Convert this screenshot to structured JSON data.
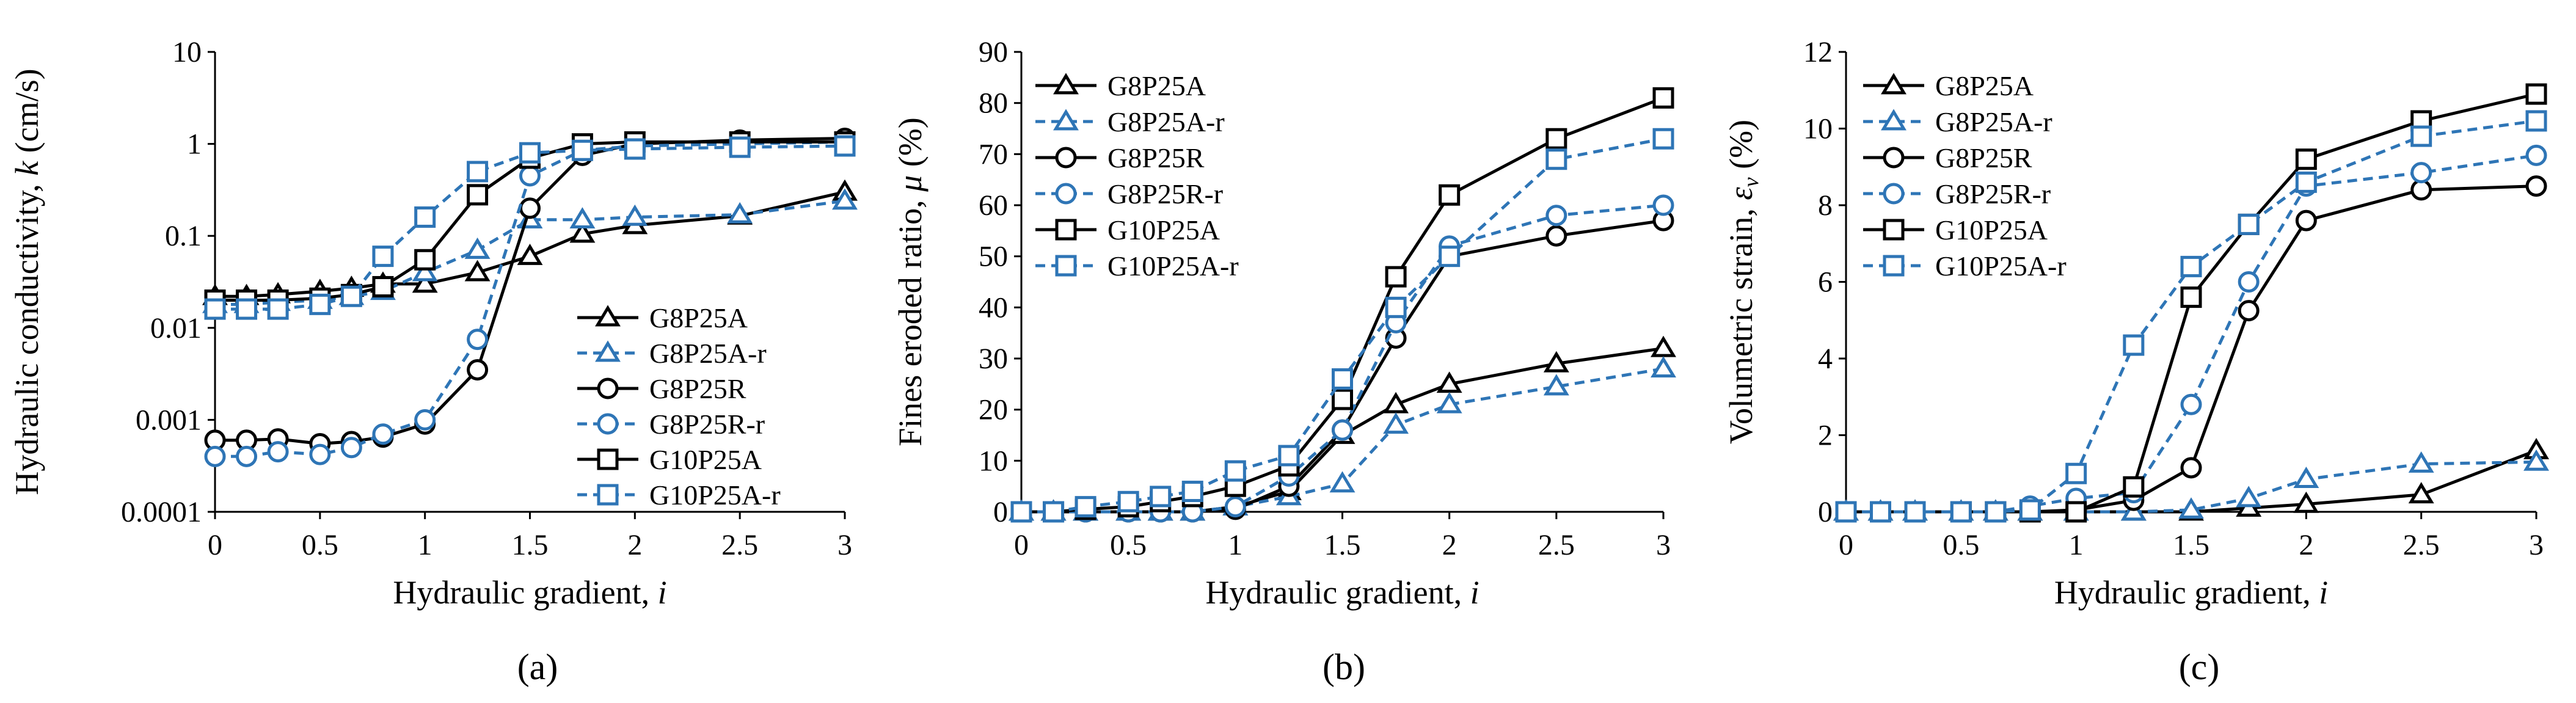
{
  "figure": {
    "captions": [
      "(a)",
      "(b)",
      "(c)"
    ]
  },
  "colors": {
    "black": "#000000",
    "blue": "#2E75B6"
  },
  "chart_data": [
    {
      "type": "line",
      "panel": "(a)",
      "title": "",
      "xlabel_main": "Hydraulic gradient, ",
      "xlabel_italic": "i",
      "ylabel_main": "Hydraulic conductivity, ",
      "ylabel_italic": "k",
      "ylabel_unit": " (cm/s)",
      "yscale": "log",
      "xlim": [
        0,
        3
      ],
      "ylim": [
        0.0001,
        10
      ],
      "xticks": [
        0,
        0.5,
        1,
        1.5,
        2,
        2.5,
        3
      ],
      "xtick_labels": [
        "0",
        "0.5",
        "1",
        "1.5",
        "2",
        "2.5",
        "3"
      ],
      "yticks": [
        0.0001,
        0.001,
        0.01,
        0.1,
        1,
        10
      ],
      "ytick_labels": [
        "0.0001",
        "0.001",
        "0.01",
        "0.1",
        "1",
        "10"
      ],
      "legend_position": "center-right",
      "series": [
        {
          "name": "G8P25A",
          "color": "black",
          "dash": false,
          "marker": "triangle",
          "x": [
            0,
            0.15,
            0.3,
            0.5,
            0.65,
            0.8,
            1,
            1.25,
            1.5,
            1.75,
            2,
            2.5,
            3
          ],
          "y": [
            0.022,
            0.022,
            0.023,
            0.025,
            0.027,
            0.03,
            0.03,
            0.04,
            0.06,
            0.105,
            0.13,
            0.165,
            0.3
          ]
        },
        {
          "name": "G8P25A-r",
          "color": "blue",
          "dash": true,
          "marker": "triangle",
          "x": [
            0,
            0.15,
            0.3,
            0.5,
            0.65,
            0.8,
            1,
            1.25,
            1.5,
            1.75,
            2,
            2.5,
            3
          ],
          "y": [
            0.018,
            0.018,
            0.019,
            0.02,
            0.022,
            0.025,
            0.04,
            0.07,
            0.15,
            0.15,
            0.16,
            0.17,
            0.24
          ]
        },
        {
          "name": "G8P25R",
          "color": "black",
          "dash": false,
          "marker": "circle",
          "x": [
            0,
            0.15,
            0.3,
            0.5,
            0.65,
            0.8,
            1,
            1.25,
            1.5,
            1.75,
            2,
            2.5,
            3
          ],
          "y": [
            0.0006,
            0.0006,
            0.00062,
            0.00055,
            0.00058,
            0.00065,
            0.0009,
            0.0035,
            0.2,
            0.75,
            1.0,
            1.1,
            1.15
          ]
        },
        {
          "name": "G8P25R-r",
          "color": "blue",
          "dash": true,
          "marker": "circle",
          "x": [
            0,
            0.15,
            0.3,
            0.5,
            0.65,
            0.8,
            1,
            1.25,
            1.5,
            1.75,
            2,
            2.5,
            3
          ],
          "y": [
            0.0004,
            0.0004,
            0.00045,
            0.00042,
            0.0005,
            0.0007,
            0.001,
            0.0075,
            0.45,
            0.85,
            0.95,
            1.0,
            1.05
          ]
        },
        {
          "name": "G10P25A",
          "color": "black",
          "dash": false,
          "marker": "square",
          "x": [
            0,
            0.15,
            0.3,
            0.5,
            0.65,
            0.8,
            1,
            1.25,
            1.5,
            1.75,
            2,
            2.5,
            3
          ],
          "y": [
            0.02,
            0.02,
            0.02,
            0.021,
            0.023,
            0.028,
            0.055,
            0.28,
            0.7,
            1.0,
            1.05,
            1.05,
            1.05
          ]
        },
        {
          "name": "G10P25A-r",
          "color": "blue",
          "dash": true,
          "marker": "square",
          "x": [
            0,
            0.15,
            0.3,
            0.5,
            0.65,
            0.8,
            1,
            1.25,
            1.5,
            1.75,
            2,
            2.5,
            3
          ],
          "y": [
            0.016,
            0.016,
            0.016,
            0.018,
            0.022,
            0.06,
            0.16,
            0.5,
            0.8,
            0.85,
            0.88,
            0.92,
            0.95
          ]
        }
      ]
    },
    {
      "type": "line",
      "panel": "(b)",
      "title": "",
      "xlabel_main": "Hydraulic gradient, ",
      "xlabel_italic": "i",
      "ylabel_main": "Fines eroded ratio, ",
      "ylabel_italic": "μ",
      "ylabel_unit": " (%)",
      "yscale": "linear",
      "xlim": [
        0,
        3
      ],
      "ylim": [
        0,
        90
      ],
      "xticks": [
        0,
        0.5,
        1,
        1.5,
        2,
        2.5,
        3
      ],
      "xtick_labels": [
        "0",
        "0.5",
        "1",
        "1.5",
        "2",
        "2.5",
        "3"
      ],
      "yticks": [
        0,
        10,
        20,
        30,
        40,
        50,
        60,
        70,
        80,
        90
      ],
      "ytick_labels": [
        "0",
        "10",
        "20",
        "30",
        "40",
        "50",
        "60",
        "70",
        "80",
        "90"
      ],
      "legend_position": "top-left",
      "series": [
        {
          "name": "G8P25A",
          "color": "black",
          "dash": false,
          "marker": "triangle",
          "x": [
            0,
            0.15,
            0.3,
            0.5,
            0.65,
            0.8,
            1,
            1.25,
            1.5,
            1.75,
            2,
            2.5,
            3
          ],
          "y": [
            0,
            0,
            0,
            0,
            0,
            0,
            1,
            4,
            15,
            21,
            25,
            29,
            32
          ]
        },
        {
          "name": "G8P25A-r",
          "color": "blue",
          "dash": true,
          "marker": "triangle",
          "x": [
            0,
            0.15,
            0.3,
            0.5,
            0.65,
            0.8,
            1,
            1.25,
            1.5,
            1.75,
            2,
            2.5,
            3
          ],
          "y": [
            0,
            0,
            0,
            0,
            0,
            0,
            1,
            3,
            5.5,
            17,
            21,
            24.5,
            28
          ]
        },
        {
          "name": "G8P25R",
          "color": "black",
          "dash": false,
          "marker": "circle",
          "x": [
            0,
            0.15,
            0.3,
            0.5,
            0.65,
            0.8,
            1,
            1.25,
            1.5,
            1.75,
            2,
            2.5,
            3
          ],
          "y": [
            0,
            0,
            0,
            0,
            0,
            0,
            0.5,
            5,
            16,
            34,
            50,
            54,
            57
          ]
        },
        {
          "name": "G8P25R-r",
          "color": "blue",
          "dash": true,
          "marker": "circle",
          "x": [
            0,
            0.15,
            0.3,
            0.5,
            0.65,
            0.8,
            1,
            1.25,
            1.5,
            1.75,
            2,
            2.5,
            3
          ],
          "y": [
            0,
            0,
            0,
            0,
            0,
            0,
            1,
            7,
            16,
            37,
            52,
            58,
            60
          ]
        },
        {
          "name": "G10P25A",
          "color": "black",
          "dash": false,
          "marker": "square",
          "x": [
            0,
            0.15,
            0.3,
            0.5,
            0.65,
            0.8,
            1,
            1.25,
            1.5,
            1.75,
            2,
            2.5,
            3
          ],
          "y": [
            0,
            0,
            0.5,
            1,
            2,
            3,
            5,
            9,
            22,
            46,
            62,
            73,
            81
          ]
        },
        {
          "name": "G10P25A-r",
          "color": "blue",
          "dash": true,
          "marker": "square",
          "x": [
            0,
            0.15,
            0.3,
            0.5,
            0.65,
            0.8,
            1,
            1.25,
            1.5,
            1.75,
            2,
            2.5,
            3
          ],
          "y": [
            0,
            0,
            1,
            2,
            3,
            4,
            8,
            11,
            26,
            40,
            50,
            69,
            73
          ]
        }
      ]
    },
    {
      "type": "line",
      "panel": "(c)",
      "title": "",
      "xlabel_main": "Hydraulic gradient, ",
      "xlabel_italic": "i",
      "ylabel_main": "Volumetric strain, ",
      "ylabel_italic": "ε",
      "ylabel_sub": "v",
      "ylabel_unit": " (%)",
      "yscale": "linear",
      "xlim": [
        0,
        3
      ],
      "ylim": [
        0,
        12
      ],
      "xticks": [
        0,
        0.5,
        1,
        1.5,
        2,
        2.5,
        3
      ],
      "xtick_labels": [
        "0",
        "0.5",
        "1",
        "1.5",
        "2",
        "2.5",
        "3"
      ],
      "yticks": [
        0,
        2,
        4,
        6,
        8,
        10,
        12
      ],
      "ytick_labels": [
        "0",
        "2",
        "4",
        "6",
        "8",
        "10",
        "12"
      ],
      "legend_position": "top-left",
      "series": [
        {
          "name": "G8P25A",
          "color": "black",
          "dash": false,
          "marker": "triangle",
          "x": [
            0,
            0.15,
            0.3,
            0.5,
            0.65,
            0.8,
            1,
            1.25,
            1.5,
            1.75,
            2,
            2.5,
            3
          ],
          "y": [
            0,
            0,
            0,
            0,
            0,
            0,
            0,
            0,
            0,
            0.1,
            0.2,
            0.45,
            1.6
          ]
        },
        {
          "name": "G8P25A-r",
          "color": "blue",
          "dash": true,
          "marker": "triangle",
          "x": [
            0,
            0.15,
            0.3,
            0.5,
            0.65,
            0.8,
            1,
            1.25,
            1.5,
            1.75,
            2,
            2.5,
            3
          ],
          "y": [
            0,
            0,
            0,
            0,
            0,
            0,
            0,
            0,
            0.05,
            0.35,
            0.85,
            1.25,
            1.3
          ]
        },
        {
          "name": "G8P25R",
          "color": "black",
          "dash": false,
          "marker": "circle",
          "x": [
            0,
            0.15,
            0.3,
            0.5,
            0.65,
            0.8,
            1,
            1.25,
            1.5,
            1.75,
            2,
            2.5,
            3
          ],
          "y": [
            0,
            0,
            0,
            0,
            0,
            0,
            0.05,
            0.3,
            1.15,
            5.25,
            7.6,
            8.4,
            8.5
          ]
        },
        {
          "name": "G8P25R-r",
          "color": "blue",
          "dash": true,
          "marker": "circle",
          "x": [
            0,
            0.15,
            0.3,
            0.5,
            0.65,
            0.8,
            1,
            1.25,
            1.5,
            1.75,
            2,
            2.5,
            3
          ],
          "y": [
            0,
            0,
            0,
            0,
            0,
            0.15,
            0.35,
            0.5,
            2.8,
            6.0,
            8.5,
            8.85,
            9.3
          ]
        },
        {
          "name": "G10P25A",
          "color": "black",
          "dash": false,
          "marker": "square",
          "x": [
            0,
            0.15,
            0.3,
            0.5,
            0.65,
            0.8,
            1,
            1.25,
            1.5,
            1.75,
            2,
            2.5,
            3
          ],
          "y": [
            0,
            0,
            0,
            0,
            0,
            0,
            0,
            0.65,
            5.6,
            7.5,
            9.2,
            10.2,
            10.9
          ]
        },
        {
          "name": "G10P25A-r",
          "color": "blue",
          "dash": true,
          "marker": "square",
          "x": [
            0,
            0.15,
            0.3,
            0.5,
            0.65,
            0.8,
            1,
            1.25,
            1.5,
            1.75,
            2,
            2.5,
            3
          ],
          "y": [
            0,
            0,
            0,
            0,
            0,
            0.05,
            1.0,
            4.35,
            6.4,
            7.5,
            8.6,
            9.8,
            10.2
          ]
        }
      ]
    }
  ]
}
